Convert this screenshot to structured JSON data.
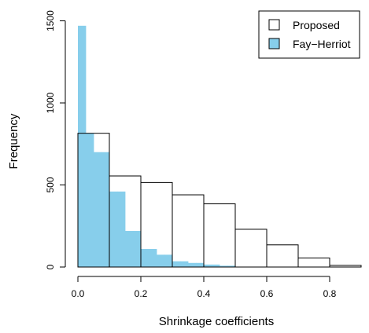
{
  "chart_data": {
    "type": "bar",
    "xlabel": "Shrinkage coefficients",
    "ylabel": "Frequency",
    "xlim": [
      -0.01,
      0.9
    ],
    "ylim": [
      0,
      1560
    ],
    "x_ticks": [
      0.0,
      0.2,
      0.4,
      0.6,
      0.8
    ],
    "x_tick_labels": [
      "0.0",
      "0.2",
      "0.4",
      "0.6",
      "0.8"
    ],
    "y_ticks": [
      0,
      500,
      1000,
      1500
    ],
    "y_tick_labels": [
      "0",
      "500",
      "1000",
      "1500"
    ],
    "grid": false,
    "legend_position": "top-right",
    "series": [
      {
        "name": "Fay−Herriot",
        "color": "#87CEEB",
        "style": "filled",
        "bin_width": 0.025,
        "bin_starts": [
          0.0,
          0.025,
          0.05,
          0.075,
          0.1,
          0.125,
          0.15,
          0.175,
          0.2,
          0.225,
          0.25,
          0.275,
          0.3,
          0.325,
          0.35,
          0.375,
          0.4,
          0.425,
          0.45,
          0.475
        ],
        "values": [
          1470,
          815,
          700,
          700,
          460,
          460,
          220,
          220,
          110,
          110,
          75,
          75,
          35,
          35,
          25,
          25,
          15,
          15,
          8,
          8
        ]
      },
      {
        "name": "Proposed",
        "color": "#000000",
        "style": "outline",
        "bin_width": 0.1,
        "bin_starts": [
          0.0,
          0.1,
          0.2,
          0.3,
          0.4,
          0.5,
          0.6,
          0.7,
          0.8
        ],
        "values": [
          815,
          555,
          515,
          440,
          385,
          230,
          135,
          55,
          10
        ]
      }
    ]
  }
}
